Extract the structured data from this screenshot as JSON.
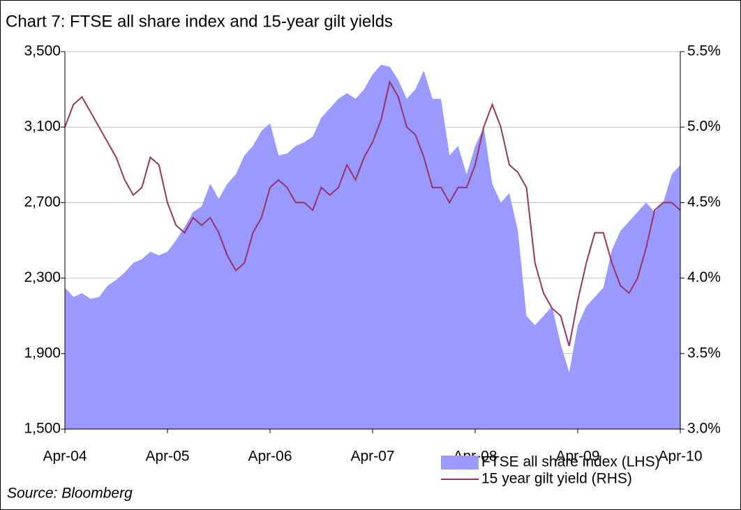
{
  "chart_data": {
    "type": "area-line",
    "title": "Chart 7: FTSE all share index and 15-year gilt yields",
    "source": "Source: Bloomberg",
    "categories": [
      "Apr-04",
      null,
      null,
      null,
      null,
      null,
      null,
      null,
      null,
      null,
      null,
      null,
      "Apr-05",
      null,
      null,
      null,
      null,
      null,
      null,
      null,
      null,
      null,
      null,
      null,
      "Apr-06",
      null,
      null,
      null,
      null,
      null,
      null,
      null,
      null,
      null,
      null,
      null,
      "Apr-07",
      null,
      null,
      null,
      null,
      null,
      null,
      null,
      null,
      null,
      null,
      null,
      "Apr-08",
      null,
      null,
      null,
      null,
      null,
      null,
      null,
      null,
      null,
      null,
      null,
      "Apr-09",
      null,
      null,
      null,
      null,
      null,
      null,
      null,
      null,
      null,
      null,
      null,
      "Apr-10"
    ],
    "series": [
      {
        "name": "FTSE all share index (LHS)",
        "color": "#9999ff",
        "axis": "y",
        "kind": "area",
        "values": [
          2250,
          2200,
          2220,
          2190,
          2200,
          2260,
          2290,
          2330,
          2380,
          2400,
          2440,
          2420,
          2440,
          2500,
          2570,
          2650,
          2680,
          2800,
          2720,
          2800,
          2850,
          2950,
          3000,
          3080,
          3120,
          2950,
          2960,
          3000,
          3020,
          3050,
          3150,
          3200,
          3250,
          3280,
          3250,
          3300,
          3380,
          3430,
          3420,
          3350,
          3250,
          3300,
          3400,
          3250,
          3250,
          2950,
          3000,
          2850,
          3000,
          3100,
          2800,
          2700,
          2750,
          2550,
          2100,
          2050,
          2100,
          2150,
          1950,
          1800,
          2050,
          2150,
          2200,
          2250,
          2450,
          2550,
          2600,
          2650,
          2700,
          2650,
          2700,
          2850,
          2900
        ]
      },
      {
        "name": "15 year gilt yield (RHS)",
        "color": "#993366",
        "axis": "y2",
        "kind": "line",
        "values": [
          5.0,
          5.15,
          5.2,
          5.1,
          5.0,
          4.9,
          4.8,
          4.65,
          4.55,
          4.6,
          4.8,
          4.75,
          4.5,
          4.35,
          4.3,
          4.4,
          4.35,
          4.4,
          4.3,
          4.15,
          4.05,
          4.1,
          4.3,
          4.4,
          4.6,
          4.65,
          4.6,
          4.5,
          4.5,
          4.45,
          4.6,
          4.55,
          4.6,
          4.75,
          4.65,
          4.8,
          4.9,
          5.05,
          5.3,
          5.2,
          5.0,
          4.95,
          4.8,
          4.6,
          4.6,
          4.5,
          4.6,
          4.6,
          4.75,
          5.0,
          5.15,
          5.0,
          4.75,
          4.7,
          4.6,
          4.1,
          3.9,
          3.8,
          3.75,
          3.55,
          3.85,
          4.1,
          4.3,
          4.3,
          4.1,
          3.95,
          3.9,
          4.0,
          4.2,
          4.45,
          4.5,
          4.5,
          4.45
        ]
      }
    ],
    "ylim": [
      1500,
      3500
    ],
    "yticks": [
      {
        "value": 1500,
        "label": "1,500"
      },
      {
        "value": 1900,
        "label": "1,900"
      },
      {
        "value": 2300,
        "label": "2,300"
      },
      {
        "value": 2700,
        "label": "2,700"
      },
      {
        "value": 3100,
        "label": "3,100"
      },
      {
        "value": 3500,
        "label": "3,500"
      }
    ],
    "y2lim": [
      3.0,
      5.5
    ],
    "y2ticks": [
      {
        "value": 3.0,
        "label": "3.0%"
      },
      {
        "value": 3.5,
        "label": "3.5%"
      },
      {
        "value": 4.0,
        "label": "4.0%"
      },
      {
        "value": 4.5,
        "label": "4.5%"
      },
      {
        "value": 5.0,
        "label": "5.0%"
      },
      {
        "value": 5.5,
        "label": "5.5%"
      }
    ],
    "grid": true
  }
}
